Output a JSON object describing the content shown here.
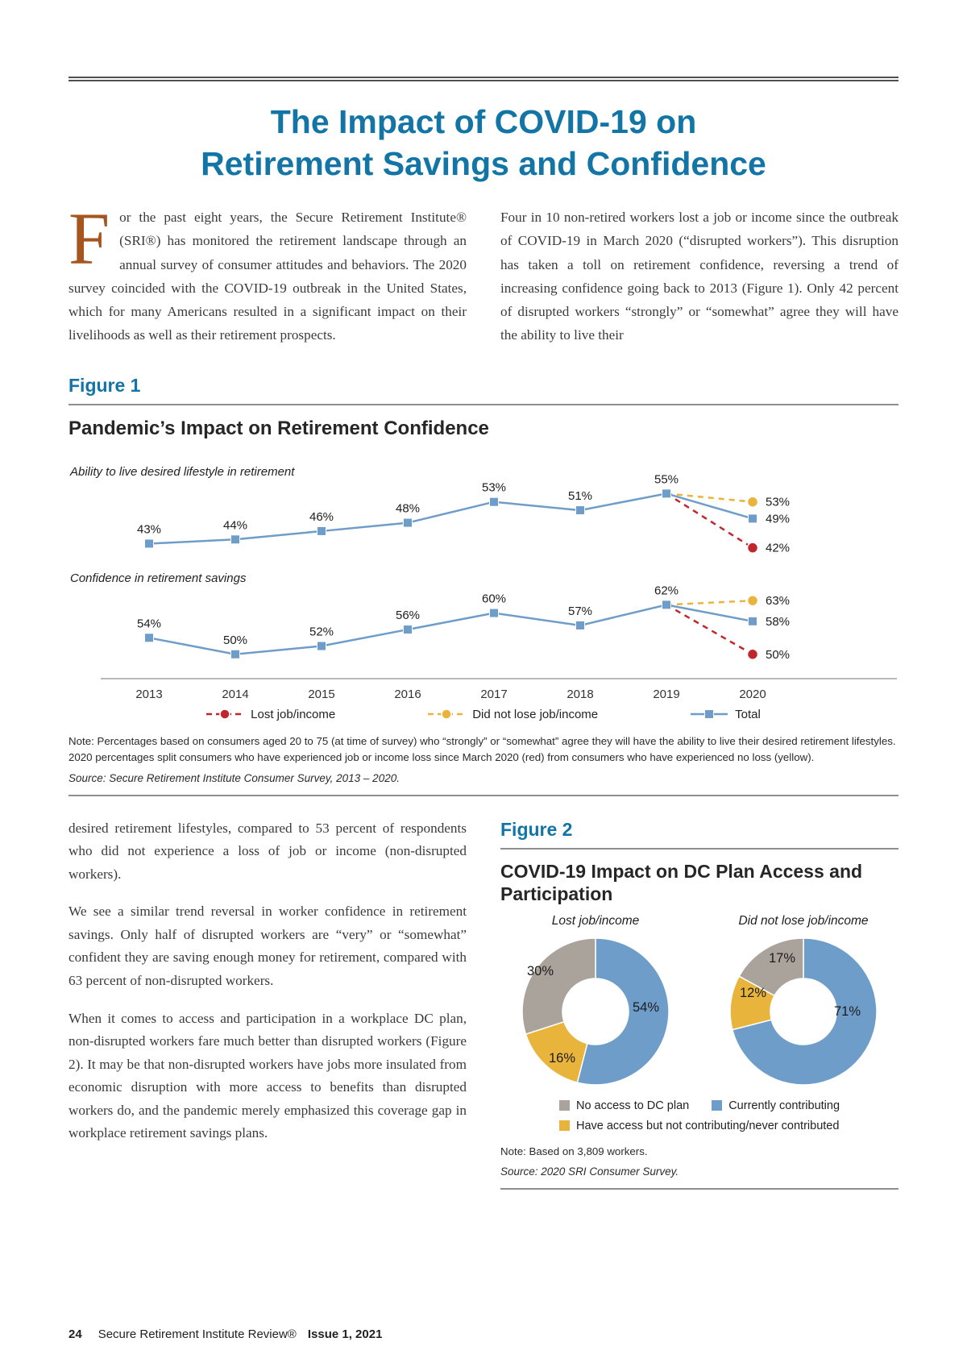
{
  "article": {
    "title_line1": "The Impact of COVID-19 on",
    "title_line2": "Retirement Savings and Confidence",
    "intro": {
      "dropcap": "F",
      "left_text": "or the past eight years, the Secure Retirement Institute® (SRI®) has monitored the retirement landscape through an annual survey of consumer attitudes and behaviors. The 2020 survey coincided with the COVID-19 outbreak in the United States, which for many Americans resulted in a significant impact on their livelihoods as well as their retirement prospects.",
      "right_text": "Four in 10 non-retired workers lost a job or income since the outbreak of COVID-19 in March 2020 (“disrupted workers”). This disruption has taken a toll on retirement confidence, reversing a trend of increasing confidence going back to 2013 (Figure 1). Only 42 percent of disrupted workers “strongly” or “somewhat” agree they will have the ability to live their"
    },
    "body": {
      "p1": "desired retirement lifestyles, compared to 53 percent of respondents who did not experience a loss of job or income (non-disrupted workers).",
      "p2": "We see a similar trend reversal in worker confidence in retirement savings. Only half of disrupted workers are “very” or “somewhat” confident they are saving enough money for retirement, compared with 63 percent of non-disrupted workers.",
      "p3": "When it comes to access and participation in a workplace DC plan, non-disrupted workers fare much better than disrupted workers (Figure 2). It may be that non-disrupted workers have jobs more insulated from economic disruption with more access to benefits than disrupted workers do, and the pandemic merely emphasized this coverage gap in workplace retirement savings plans."
    },
    "footer": {
      "page_number": "24",
      "publication": "Secure Retirement Institute Review®",
      "issue": "Issue 1, 2021"
    }
  },
  "figure1": {
    "label": "Figure 1",
    "title": "Pandemic’s Impact on Retirement Confidence",
    "legend": [
      {
        "label": "Lost job/income",
        "color": "#c0272d",
        "marker": "circle",
        "dashed": true
      },
      {
        "label": "Did not lose job/income",
        "color": "#e9b43c",
        "marker": "circle",
        "dashed": true
      },
      {
        "label": "Total",
        "color": "#6f9dca",
        "marker": "square",
        "dashed": false
      }
    ],
    "note": "Note: Percentages based on consumers aged 20 to 75 (at time of survey) who “strongly” or “somewhat” agree they will have the ability to live their desired retirement lifestyles. 2020 percentages split consumers who have experienced job or income loss since March 2020 (red) from consumers who have experienced no loss (yellow).",
    "source": "Source: Secure Retirement Institute Consumer Survey, 2013 – 2020."
  },
  "figure2": {
    "label": "Figure 2",
    "title": "COVID-19 Impact on DC Plan Access and Participation",
    "legend": [
      {
        "label": "No access to DC plan",
        "color": "#aaa39b"
      },
      {
        "label": "Currently contributing",
        "color": "#6f9dca"
      },
      {
        "label": "Have access but not contributing/never contributed",
        "color": "#e9b43c"
      }
    ],
    "note": "Note: Based on 3,809 workers.",
    "source": "Source: 2020 SRI Consumer Survey."
  },
  "chart_data": [
    {
      "type": "line",
      "title": "Pandemic’s Impact on Retirement Confidence",
      "categories": [
        "2013",
        "2014",
        "2015",
        "2016",
        "2017",
        "2018",
        "2019",
        "2020"
      ],
      "colors": {
        "total": "#6f9dca",
        "lost": "#c0272d",
        "did_not_lose": "#e9b43c"
      },
      "groups": [
        {
          "label": "Ability to live desired lifestyle in retirement",
          "total": [
            43,
            44,
            46,
            48,
            53,
            51,
            55,
            49
          ],
          "did_not_lose_2020": 53,
          "lost_2020": 42,
          "ylim": [
            40,
            57
          ]
        },
        {
          "label": "Confidence in retirement savings",
          "total": [
            54,
            50,
            52,
            56,
            60,
            57,
            62,
            58
          ],
          "did_not_lose_2020": 63,
          "lost_2020": 50,
          "ylim": [
            48,
            65
          ]
        }
      ],
      "legend_position": "bottom",
      "grid": false
    },
    {
      "type": "pie",
      "donut": true,
      "title": "Lost job/income",
      "slices": [
        {
          "name": "Currently contributing",
          "value": 54,
          "color": "#6f9dca"
        },
        {
          "name": "Have access but not contributing/never contributed",
          "value": 16,
          "color": "#e9b43c"
        },
        {
          "name": "No access to DC plan",
          "value": 30,
          "color": "#aaa39b"
        }
      ]
    },
    {
      "type": "pie",
      "donut": true,
      "title": "Did not lose job/income",
      "slices": [
        {
          "name": "Currently contributing",
          "value": 71,
          "color": "#6f9dca"
        },
        {
          "name": "Have access but not contributing/never contributed",
          "value": 12,
          "color": "#e9b43c"
        },
        {
          "name": "No access to DC plan",
          "value": 17,
          "color": "#aaa39b"
        }
      ]
    }
  ]
}
